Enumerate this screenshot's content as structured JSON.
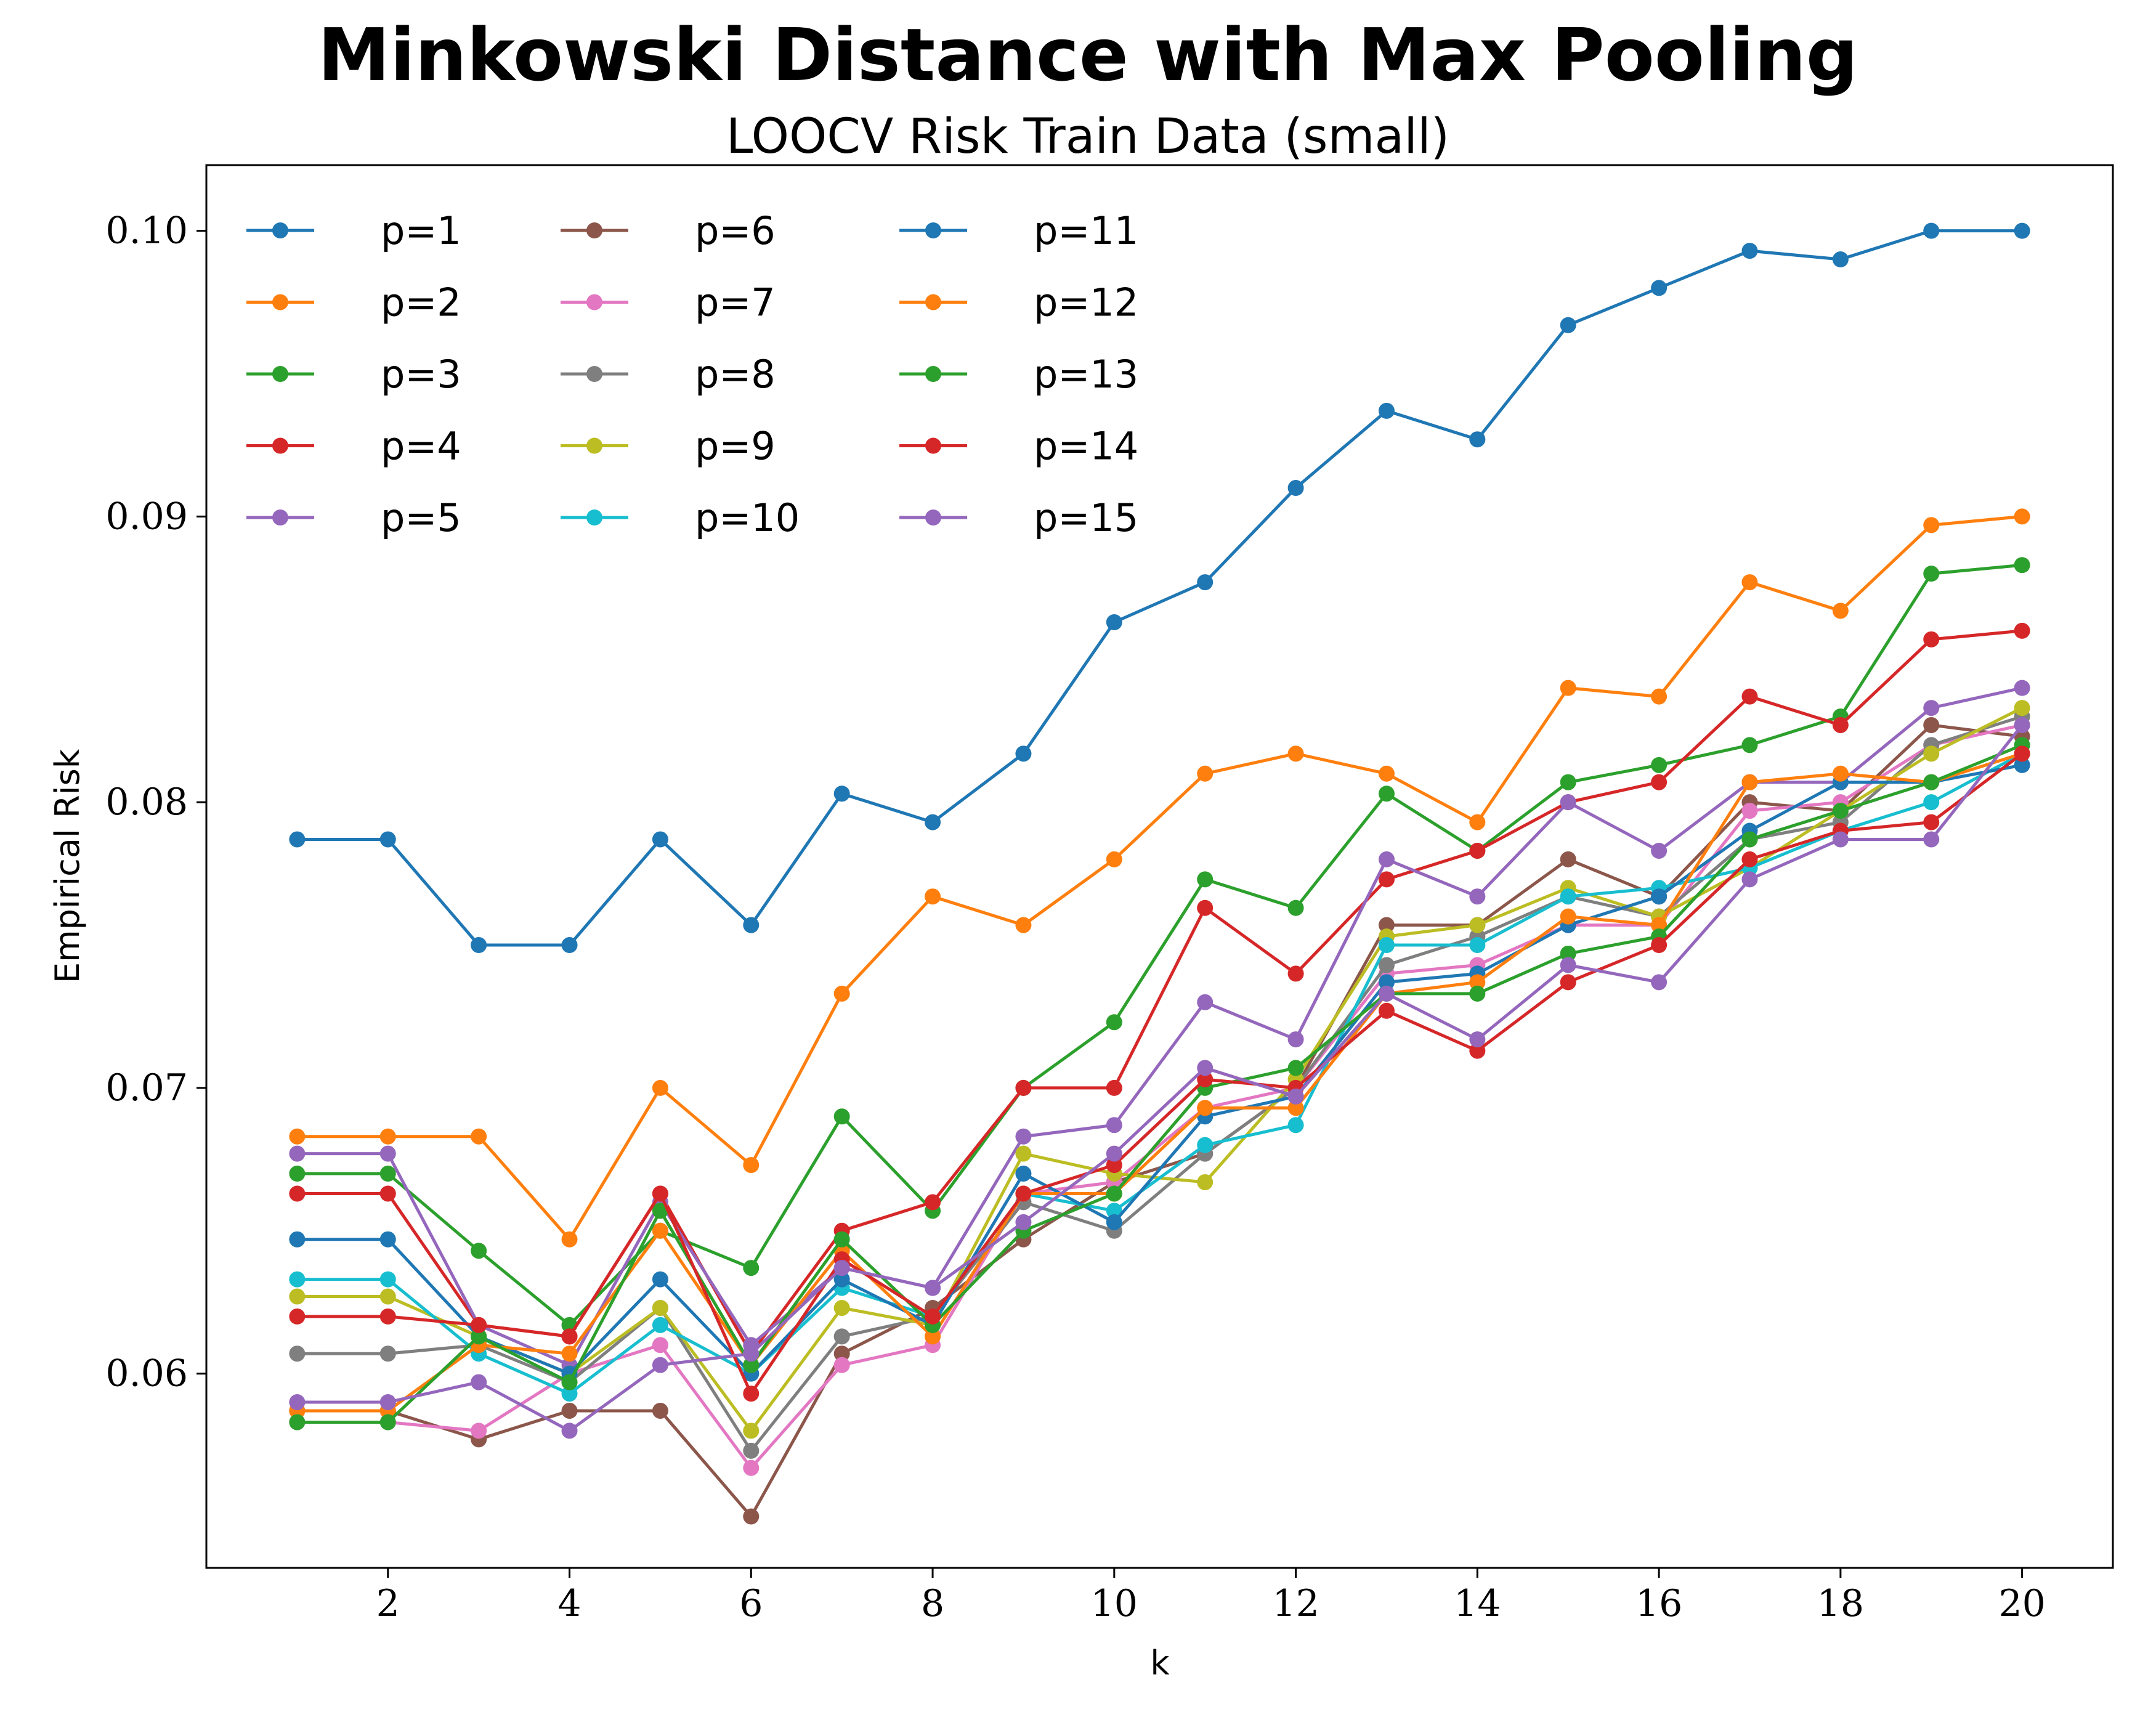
{
  "chart_data": {
    "type": "line",
    "title": "Minkowski Distance with Max Pooling",
    "subtitle": "LOOCV Risk Train Data (small)",
    "xlabel": "k",
    "ylabel": "Empirical Risk",
    "xlim": [
      0.0,
      21.0
    ],
    "ylim": [
      0.0532,
      0.1023
    ],
    "xticks": [
      2,
      4,
      6,
      8,
      10,
      12,
      14,
      16,
      18,
      20
    ],
    "xtick_labels": [
      "2",
      "4",
      "6",
      "8",
      "10",
      "12",
      "14",
      "16",
      "18",
      "20"
    ],
    "yticks": [
      0.06,
      0.07,
      0.08,
      0.09,
      0.1
    ],
    "ytick_labels": [
      "0.06",
      "0.07",
      "0.08",
      "0.09",
      "0.10"
    ],
    "grid": false,
    "legend_position": "top-left",
    "legend_columns": 3,
    "x": [
      1,
      2,
      3,
      4,
      5,
      6,
      7,
      8,
      9,
      10,
      11,
      12,
      13,
      14,
      15,
      16,
      17,
      18,
      19,
      20
    ],
    "series": [
      {
        "name": "p=1",
        "color": "#1f77b4",
        "values": [
          0.0787,
          0.0787,
          0.075,
          0.075,
          0.0787,
          0.0757,
          0.0803,
          0.0793,
          0.0817,
          0.0863,
          0.0877,
          0.091,
          0.0937,
          0.0927,
          0.0967,
          0.098,
          0.0993,
          0.099,
          0.1,
          0.1
        ]
      },
      {
        "name": "p=2",
        "color": "#ff7f0e",
        "values": [
          0.0683,
          0.0683,
          0.0683,
          0.0647,
          0.07,
          0.0673,
          0.0733,
          0.0767,
          0.0757,
          0.078,
          0.081,
          0.0817,
          0.081,
          0.0793,
          0.084,
          0.0837,
          0.0877,
          0.0867,
          0.0897,
          0.09
        ]
      },
      {
        "name": "p=3",
        "color": "#2ca02c",
        "values": [
          0.067,
          0.067,
          0.0643,
          0.0617,
          0.065,
          0.0637,
          0.069,
          0.0657,
          0.07,
          0.0723,
          0.0773,
          0.0763,
          0.0803,
          0.0783,
          0.0807,
          0.0813,
          0.082,
          0.083,
          0.088,
          0.0883
        ]
      },
      {
        "name": "p=4",
        "color": "#d62728",
        "values": [
          0.0663,
          0.0663,
          0.0617,
          0.0613,
          0.0663,
          0.0607,
          0.065,
          0.066,
          0.07,
          0.07,
          0.0763,
          0.074,
          0.0773,
          0.0783,
          0.08,
          0.0807,
          0.0837,
          0.0827,
          0.0857,
          0.086
        ]
      },
      {
        "name": "p=5",
        "color": "#9467bd",
        "values": [
          0.0677,
          0.0677,
          0.0617,
          0.0603,
          0.066,
          0.061,
          0.0637,
          0.063,
          0.0683,
          0.0687,
          0.073,
          0.0717,
          0.078,
          0.0767,
          0.08,
          0.0783,
          0.0807,
          0.0807,
          0.0833,
          0.084
        ]
      },
      {
        "name": "p=6",
        "color": "#8c564b",
        "values": [
          0.0587,
          0.0587,
          0.0577,
          0.0587,
          0.0587,
          0.055,
          0.0607,
          0.0623,
          0.0647,
          0.0667,
          0.0677,
          0.07,
          0.0757,
          0.0757,
          0.078,
          0.0767,
          0.08,
          0.0797,
          0.0827,
          0.0823
        ]
      },
      {
        "name": "p=7",
        "color": "#e377c2",
        "values": [
          0.0583,
          0.0583,
          0.058,
          0.06,
          0.061,
          0.0567,
          0.0603,
          0.061,
          0.0663,
          0.0667,
          0.0693,
          0.07,
          0.074,
          0.0743,
          0.0757,
          0.0757,
          0.0797,
          0.08,
          0.082,
          0.0827
        ]
      },
      {
        "name": "p=8",
        "color": "#7f7f7f",
        "values": [
          0.0607,
          0.0607,
          0.061,
          0.0597,
          0.0623,
          0.0573,
          0.0613,
          0.062,
          0.066,
          0.065,
          0.0677,
          0.07,
          0.0743,
          0.0753,
          0.0767,
          0.076,
          0.0787,
          0.0793,
          0.082,
          0.083
        ]
      },
      {
        "name": "p=9",
        "color": "#bcbd22",
        "values": [
          0.0627,
          0.0627,
          0.0613,
          0.06,
          0.0623,
          0.058,
          0.0623,
          0.0617,
          0.0677,
          0.067,
          0.0667,
          0.0703,
          0.0753,
          0.0757,
          0.077,
          0.076,
          0.0777,
          0.0797,
          0.0817,
          0.0833
        ]
      },
      {
        "name": "p=10",
        "color": "#17becf",
        "values": [
          0.0633,
          0.0633,
          0.0607,
          0.0593,
          0.0617,
          0.06,
          0.063,
          0.062,
          0.0663,
          0.0657,
          0.068,
          0.0687,
          0.075,
          0.075,
          0.0767,
          0.077,
          0.0777,
          0.079,
          0.08,
          0.0817
        ]
      },
      {
        "name": "p=11",
        "color": "#1f77b4",
        "values": [
          0.0647,
          0.0647,
          0.0613,
          0.06,
          0.0633,
          0.06,
          0.0633,
          0.0617,
          0.067,
          0.0653,
          0.069,
          0.0697,
          0.0737,
          0.074,
          0.0757,
          0.0767,
          0.079,
          0.0807,
          0.0807,
          0.0813
        ]
      },
      {
        "name": "p=12",
        "color": "#ff7f0e",
        "values": [
          0.0587,
          0.0587,
          0.061,
          0.0607,
          0.065,
          0.0603,
          0.0643,
          0.0613,
          0.0663,
          0.0663,
          0.0693,
          0.0693,
          0.0733,
          0.0737,
          0.076,
          0.0757,
          0.0807,
          0.081,
          0.0807,
          0.0817
        ]
      },
      {
        "name": "p=13",
        "color": "#2ca02c",
        "values": [
          0.0583,
          0.0583,
          0.0613,
          0.0597,
          0.0657,
          0.0603,
          0.0647,
          0.0617,
          0.065,
          0.0663,
          0.07,
          0.0707,
          0.0733,
          0.0733,
          0.0747,
          0.0753,
          0.0787,
          0.0797,
          0.0807,
          0.082
        ]
      },
      {
        "name": "p=14",
        "color": "#d62728",
        "values": [
          0.062,
          0.062,
          0.0617,
          0.0613,
          0.0663,
          0.0593,
          0.064,
          0.062,
          0.0663,
          0.0673,
          0.0703,
          0.07,
          0.0727,
          0.0713,
          0.0737,
          0.075,
          0.078,
          0.079,
          0.0793,
          0.0817
        ]
      },
      {
        "name": "p=15",
        "color": "#9467bd",
        "values": [
          0.059,
          0.059,
          0.0597,
          0.058,
          0.0603,
          0.0607,
          0.0637,
          0.063,
          0.0653,
          0.0677,
          0.0707,
          0.0697,
          0.0733,
          0.0717,
          0.0743,
          0.0737,
          0.0773,
          0.0787,
          0.0787,
          0.0827
        ]
      }
    ]
  }
}
